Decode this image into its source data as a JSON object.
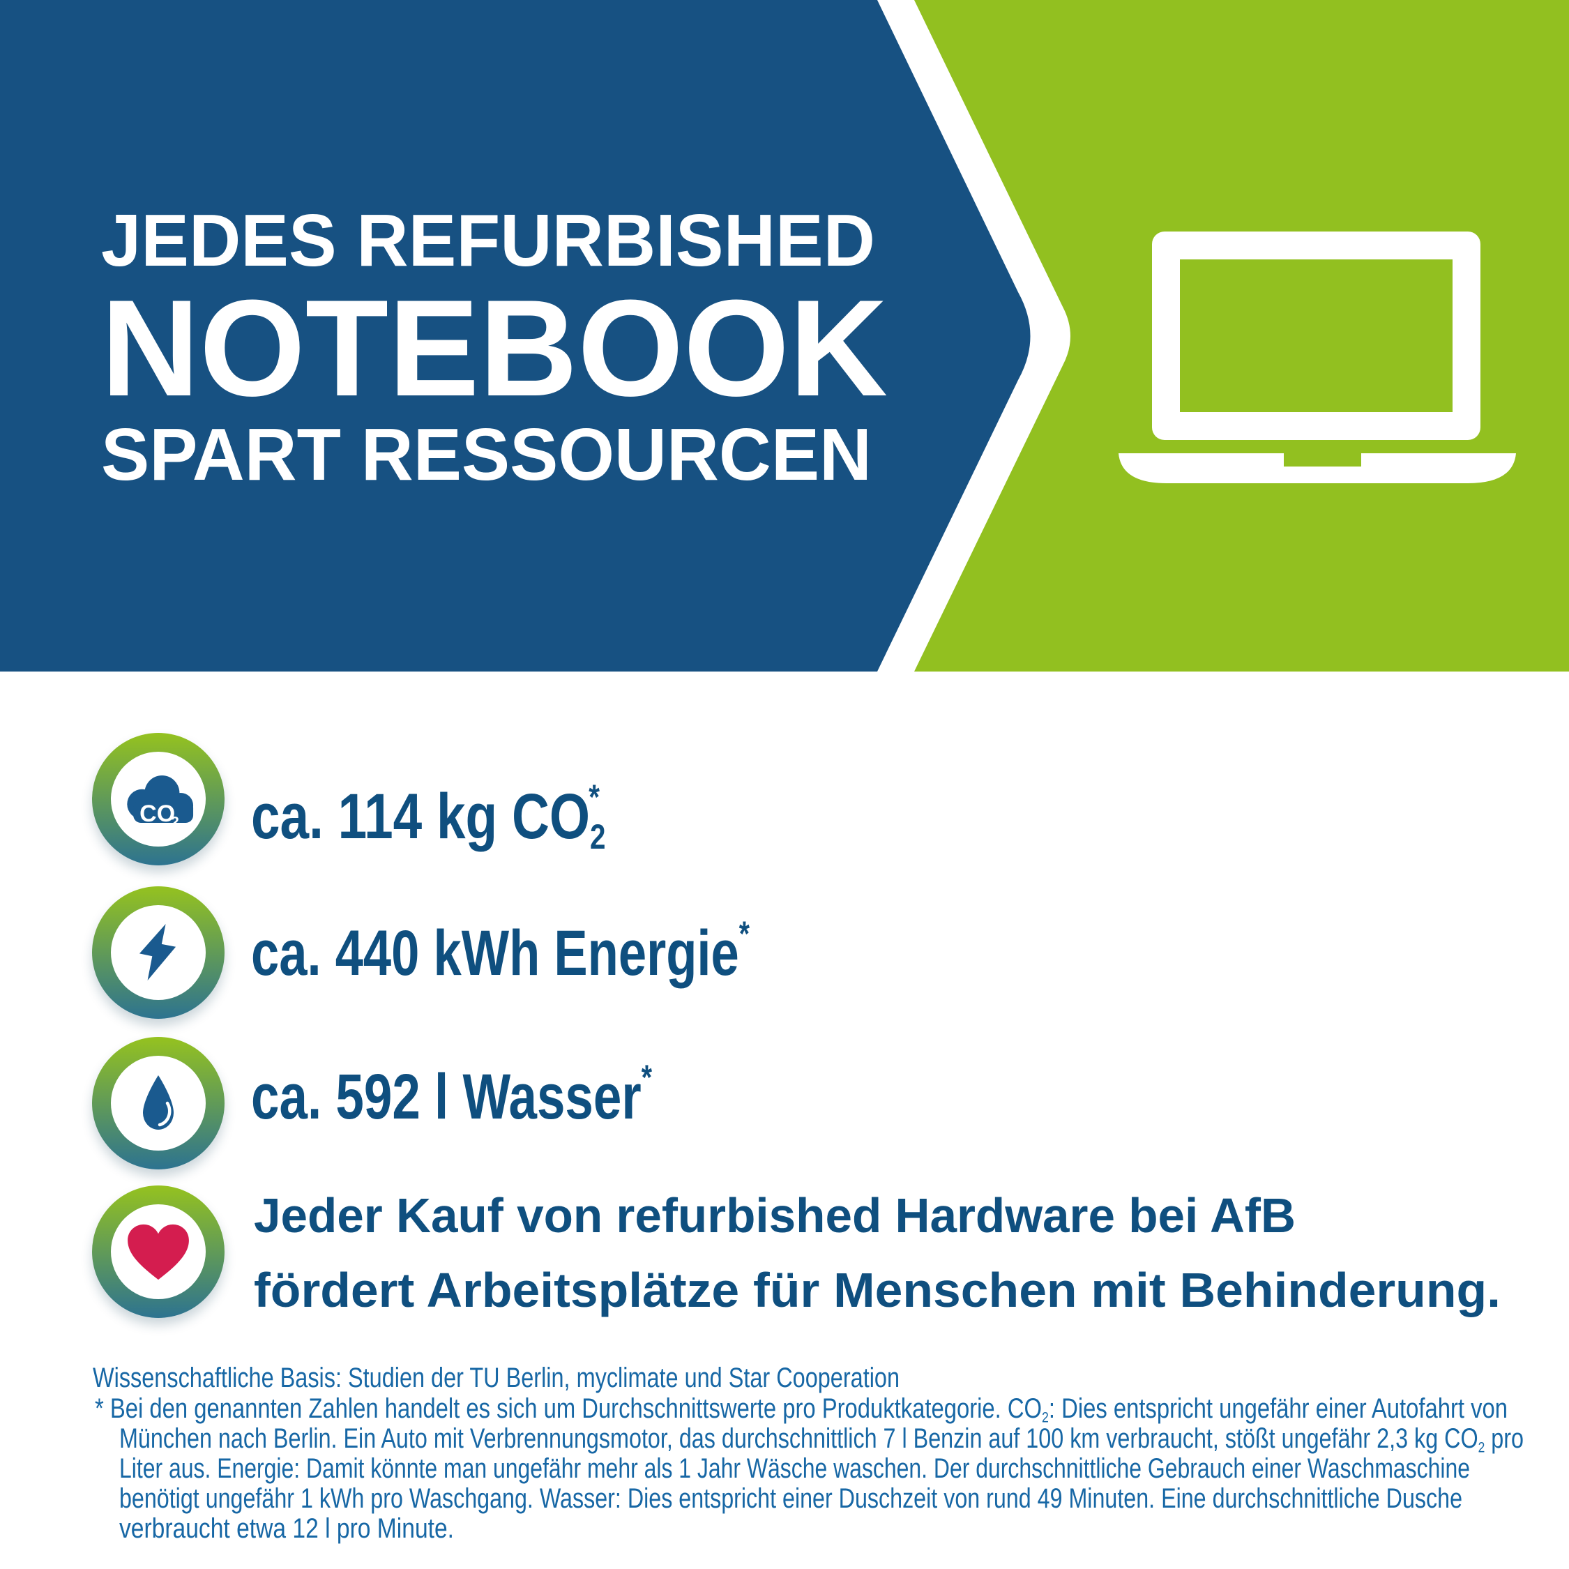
{
  "banner": {
    "headline_lines": [
      "JEDES REFURBISHED",
      "NOTEBOOK",
      "SPART RESSOURCEN"
    ]
  },
  "stats": [
    {
      "icon": "co2-cloud-icon",
      "icon_label": "CO",
      "icon_label_sub": "2",
      "value_segments": [
        {
          "t": "ca. 114 kg CO"
        },
        {
          "t": "2",
          "s": "sub"
        },
        {
          "t": "*",
          "s": "supstack"
        }
      ]
    },
    {
      "icon": "energy-bolt-icon",
      "value_segments": [
        {
          "t": "ca. 440 kWh Energie"
        },
        {
          "t": "*",
          "s": "sup"
        }
      ]
    },
    {
      "icon": "water-drop-icon",
      "value_segments": [
        {
          "t": "ca. 592 l Wasser"
        },
        {
          "t": "*",
          "s": "sup"
        }
      ]
    }
  ],
  "impact": {
    "icon": "heart-icon",
    "lines": [
      "Jeder Kauf von refurbished Hardware bei AfB",
      "fördert Arbeitsplätze für Menschen mit Behinderung."
    ]
  },
  "footer": {
    "basis": "Wissenschaftliche Basis: Studien der TU Berlin, myclimate und Star Cooperation",
    "footnote_lines": [
      {
        "segments": [
          {
            "t": "*  Bei den genannten Zahlen handelt es sich um Durchschnittswerte pro Produktkategorie. CO"
          },
          {
            "t": "2",
            "s": "sub"
          },
          {
            "t": ": Dies entspricht ungefähr einer Autofahrt von"
          }
        ]
      },
      {
        "segments": [
          {
            "t": "München nach Berlin. Ein Auto mit Verbrennungsmotor, das durchschnittlich 7 l Benzin auf 100 km verbraucht, stößt ungefähr 2,3 kg CO"
          },
          {
            "t": "2",
            "s": "sub"
          },
          {
            "t": " pro"
          }
        ]
      },
      {
        "segments": [
          {
            "t": "Liter aus. Energie: Damit könnte man ungefähr mehr als 1 Jahr Wäsche waschen. Der durchschnittliche Gebrauch einer Waschmaschine"
          }
        ]
      },
      {
        "segments": [
          {
            "t": "benötigt ungefähr 1 kWh pro Waschgang. Wasser: Dies entspricht einer Duschzeit von rund 49 Minuten. Eine durchschnittliche Dusche"
          }
        ]
      },
      {
        "segments": [
          {
            "t": "verbraucht etwa 12 l pro Minute."
          }
        ]
      }
    ]
  },
  "colors": {
    "blue": "#175182",
    "green": "#92c020",
    "text-blue": "#0f4f7f",
    "footnote-blue": "#1767a5",
    "heart-red": "#d41d4f",
    "ring-green": "#95c21f",
    "ring-teal": "#2d7390",
    "icon-blue": "#1a5a8f"
  }
}
